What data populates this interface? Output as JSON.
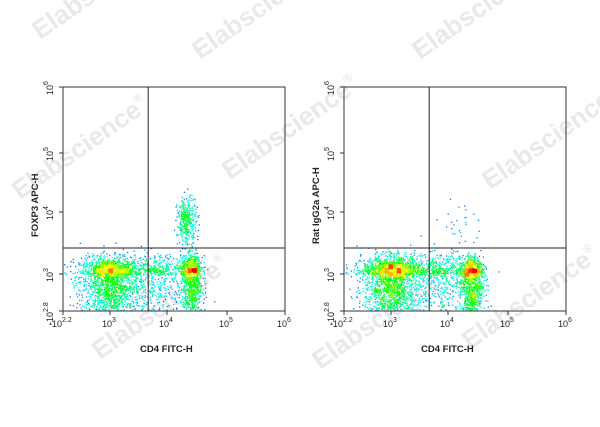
{
  "watermark": "Elabscience",
  "watermark_mark": "®",
  "chart_data": [
    {
      "type": "scatter",
      "xlabel": "CD4 FITC-H",
      "ylabel": "FOXP3 APC-H",
      "x_scale": "biexponential",
      "y_scale": "biexponential",
      "x_ticks": [
        {
          "base": "-10",
          "exp": "2.2"
        },
        {
          "base": "10",
          "exp": "3"
        },
        {
          "base": "10",
          "exp": "4"
        },
        {
          "base": "10",
          "exp": "5"
        },
        {
          "base": "10",
          "exp": "6"
        }
      ],
      "y_ticks": [
        {
          "base": "-10",
          "exp": "2.8"
        },
        {
          "base": "10",
          "exp": "3"
        },
        {
          "base": "10",
          "exp": "4"
        },
        {
          "base": "10",
          "exp": "5"
        },
        {
          "base": "10",
          "exp": "6"
        }
      ],
      "gate_x_log": 3.67,
      "gate_y_log": 3.42,
      "populations": [
        {
          "center_log": [
            3.0,
            2.97
          ],
          "spread": [
            0.26,
            0.15
          ],
          "count": 2300
        },
        {
          "center_log": [
            4.4,
            2.99
          ],
          "spread": [
            0.09,
            0.15
          ],
          "count": 1100
        },
        {
          "center_log": [
            4.32,
            3.85
          ],
          "spread": [
            0.08,
            0.2
          ],
          "count": 360
        },
        {
          "center_log": [
            3.85,
            3.0
          ],
          "spread": [
            0.25,
            0.15
          ],
          "count": 600
        }
      ],
      "colormap": "density-jet",
      "grid": false
    },
    {
      "type": "scatter",
      "xlabel": "CD4 FITC-H",
      "ylabel": "Rat IgG2a APC-H",
      "x_scale": "biexponential",
      "y_scale": "biexponential",
      "x_ticks": [
        {
          "base": "-10",
          "exp": "2.2"
        },
        {
          "base": "10",
          "exp": "3"
        },
        {
          "base": "10",
          "exp": "4"
        },
        {
          "base": "10",
          "exp": "5"
        },
        {
          "base": "10",
          "exp": "6"
        }
      ],
      "y_ticks": [
        {
          "base": "-10",
          "exp": "2.8"
        },
        {
          "base": "10",
          "exp": "3"
        },
        {
          "base": "10",
          "exp": "4"
        },
        {
          "base": "10",
          "exp": "5"
        },
        {
          "base": "10",
          "exp": "6"
        }
      ],
      "gate_x_log": 3.67,
      "gate_y_log": 3.42,
      "populations": [
        {
          "center_log": [
            3.02,
            2.98
          ],
          "spread": [
            0.26,
            0.15
          ],
          "count": 2300
        },
        {
          "center_log": [
            4.38,
            2.98
          ],
          "spread": [
            0.1,
            0.15
          ],
          "count": 1200
        },
        {
          "center_log": [
            3.85,
            3.0
          ],
          "spread": [
            0.25,
            0.15
          ],
          "count": 600
        },
        {
          "center_log": [
            4.2,
            3.8
          ],
          "spread": [
            0.25,
            0.25
          ],
          "count": 30
        }
      ],
      "colormap": "density-jet",
      "grid": false
    }
  ]
}
